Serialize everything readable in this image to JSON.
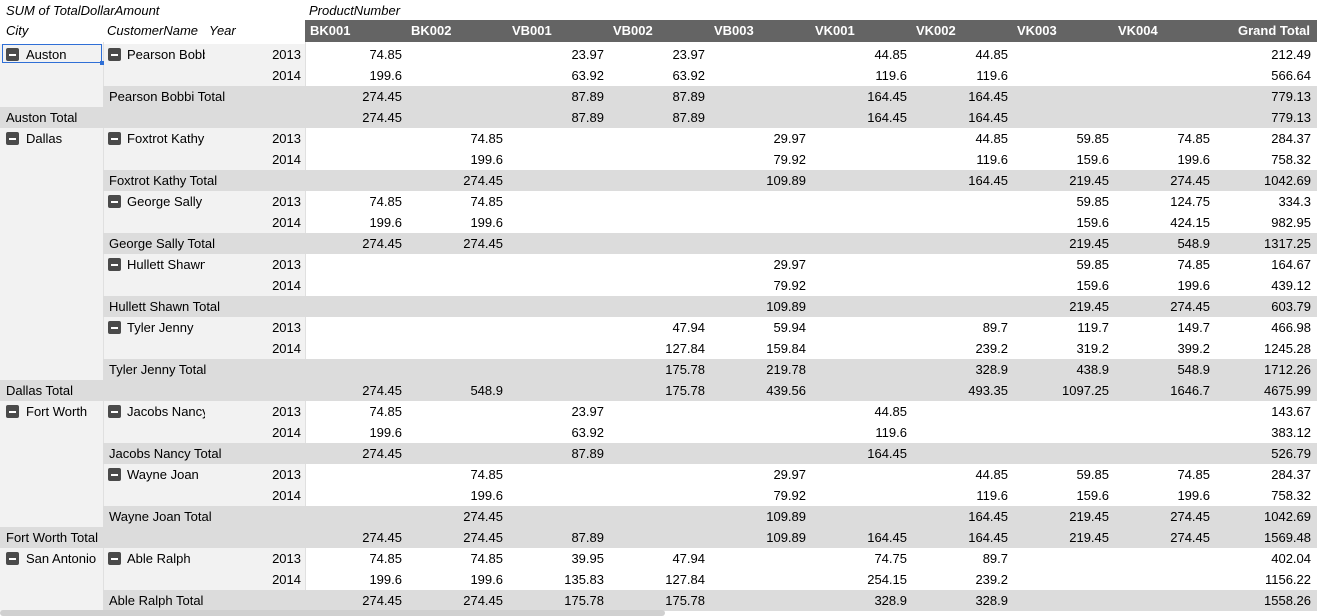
{
  "header": {
    "measure": "SUM of TotalDollarAmount",
    "column_field": "ProductNumber",
    "city_label": "City",
    "customer_label": "CustomerName",
    "year_label": "Year"
  },
  "columns": [
    "BK001",
    "BK002",
    "VB001",
    "VB002",
    "VB003",
    "VK001",
    "VK002",
    "VK003",
    "VK004",
    "Grand Total"
  ],
  "rows": [
    {
      "type": "detail",
      "city": "Auston",
      "customer": "Pearson Bobbi",
      "year": "2013",
      "values": [
        "74.85",
        "",
        "23.97",
        "23.97",
        "",
        "44.85",
        "44.85",
        "",
        "",
        "212.49"
      ]
    },
    {
      "type": "detail",
      "city": "",
      "customer": "",
      "year": "2014",
      "values": [
        "199.6",
        "",
        "63.92",
        "63.92",
        "",
        "119.6",
        "119.6",
        "",
        "",
        "566.64"
      ]
    },
    {
      "type": "custtotal",
      "label": "Pearson Bobbi Total",
      "values": [
        "274.45",
        "",
        "87.89",
        "87.89",
        "",
        "164.45",
        "164.45",
        "",
        "",
        "779.13"
      ]
    },
    {
      "type": "citytotal",
      "label": "Auston Total",
      "values": [
        "274.45",
        "",
        "87.89",
        "87.89",
        "",
        "164.45",
        "164.45",
        "",
        "",
        "779.13"
      ]
    },
    {
      "type": "detail",
      "city": "Dallas",
      "customer": "Foxtrot Kathy",
      "year": "2013",
      "values": [
        "",
        "74.85",
        "",
        "",
        "29.97",
        "",
        "44.85",
        "59.85",
        "74.85",
        "284.37"
      ]
    },
    {
      "type": "detail",
      "city": "",
      "customer": "",
      "year": "2014",
      "values": [
        "",
        "199.6",
        "",
        "",
        "79.92",
        "",
        "119.6",
        "159.6",
        "199.6",
        "758.32"
      ]
    },
    {
      "type": "custtotal",
      "label": "Foxtrot Kathy Total",
      "values": [
        "",
        "274.45",
        "",
        "",
        "109.89",
        "",
        "164.45",
        "219.45",
        "274.45",
        "1042.69"
      ]
    },
    {
      "type": "detail",
      "city": "",
      "customer": "George Sally",
      "year": "2013",
      "values": [
        "74.85",
        "74.85",
        "",
        "",
        "",
        "",
        "",
        "59.85",
        "124.75",
        "334.3"
      ]
    },
    {
      "type": "detail",
      "city": "",
      "customer": "",
      "year": "2014",
      "values": [
        "199.6",
        "199.6",
        "",
        "",
        "",
        "",
        "",
        "159.6",
        "424.15",
        "982.95"
      ]
    },
    {
      "type": "custtotal",
      "label": "George Sally Total",
      "values": [
        "274.45",
        "274.45",
        "",
        "",
        "",
        "",
        "",
        "219.45",
        "548.9",
        "1317.25"
      ]
    },
    {
      "type": "detail",
      "city": "",
      "customer": "Hullett Shawn",
      "year": "2013",
      "values": [
        "",
        "",
        "",
        "",
        "29.97",
        "",
        "",
        "59.85",
        "74.85",
        "164.67"
      ]
    },
    {
      "type": "detail",
      "city": "",
      "customer": "",
      "year": "2014",
      "values": [
        "",
        "",
        "",
        "",
        "79.92",
        "",
        "",
        "159.6",
        "199.6",
        "439.12"
      ]
    },
    {
      "type": "custtotal",
      "label": "Hullett Shawn Total",
      "values": [
        "",
        "",
        "",
        "",
        "109.89",
        "",
        "",
        "219.45",
        "274.45",
        "603.79"
      ]
    },
    {
      "type": "detail",
      "city": "",
      "customer": "Tyler Jenny",
      "year": "2013",
      "values": [
        "",
        "",
        "",
        "47.94",
        "59.94",
        "",
        "89.7",
        "119.7",
        "149.7",
        "466.98"
      ]
    },
    {
      "type": "detail",
      "city": "",
      "customer": "",
      "year": "2014",
      "values": [
        "",
        "",
        "",
        "127.84",
        "159.84",
        "",
        "239.2",
        "319.2",
        "399.2",
        "1245.28"
      ]
    },
    {
      "type": "custtotal",
      "label": "Tyler Jenny Total",
      "values": [
        "",
        "",
        "",
        "175.78",
        "219.78",
        "",
        "328.9",
        "438.9",
        "548.9",
        "1712.26"
      ]
    },
    {
      "type": "citytotal",
      "label": "Dallas Total",
      "values": [
        "274.45",
        "548.9",
        "",
        "175.78",
        "439.56",
        "",
        "493.35",
        "1097.25",
        "1646.7",
        "4675.99"
      ]
    },
    {
      "type": "detail",
      "city": "Fort Worth",
      "customer": "Jacobs Nancy",
      "year": "2013",
      "values": [
        "74.85",
        "",
        "23.97",
        "",
        "",
        "44.85",
        "",
        "",
        "",
        "143.67"
      ]
    },
    {
      "type": "detail",
      "city": "",
      "customer": "",
      "year": "2014",
      "values": [
        "199.6",
        "",
        "63.92",
        "",
        "",
        "119.6",
        "",
        "",
        "",
        "383.12"
      ]
    },
    {
      "type": "custtotal",
      "label": "Jacobs Nancy Total",
      "values": [
        "274.45",
        "",
        "87.89",
        "",
        "",
        "164.45",
        "",
        "",
        "",
        "526.79"
      ]
    },
    {
      "type": "detail",
      "city": "",
      "customer": "Wayne Joan",
      "year": "2013",
      "values": [
        "",
        "74.85",
        "",
        "",
        "29.97",
        "",
        "44.85",
        "59.85",
        "74.85",
        "284.37"
      ]
    },
    {
      "type": "detail",
      "city": "",
      "customer": "",
      "year": "2014",
      "values": [
        "",
        "199.6",
        "",
        "",
        "79.92",
        "",
        "119.6",
        "159.6",
        "199.6",
        "758.32"
      ]
    },
    {
      "type": "custtotal",
      "label": "Wayne Joan Total",
      "values": [
        "",
        "274.45",
        "",
        "",
        "109.89",
        "",
        "164.45",
        "219.45",
        "274.45",
        "1042.69"
      ]
    },
    {
      "type": "citytotal",
      "label": "Fort Worth Total",
      "values": [
        "274.45",
        "274.45",
        "87.89",
        "",
        "109.89",
        "164.45",
        "164.45",
        "219.45",
        "274.45",
        "1569.48"
      ]
    },
    {
      "type": "detail",
      "city": "San Antonio",
      "customer": "Able Ralph",
      "year": "2013",
      "values": [
        "74.85",
        "74.85",
        "39.95",
        "47.94",
        "",
        "74.75",
        "89.7",
        "",
        "",
        "402.04"
      ]
    },
    {
      "type": "detail",
      "city": "",
      "customer": "",
      "year": "2014",
      "values": [
        "199.6",
        "199.6",
        "135.83",
        "127.84",
        "",
        "254.15",
        "239.2",
        "",
        "",
        "1156.22"
      ]
    },
    {
      "type": "custtotal",
      "label": "Able Ralph Total",
      "values": [
        "274.45",
        "274.45",
        "175.78",
        "175.78",
        "",
        "328.9",
        "328.9",
        "",
        "",
        "1558.26"
      ]
    }
  ]
}
